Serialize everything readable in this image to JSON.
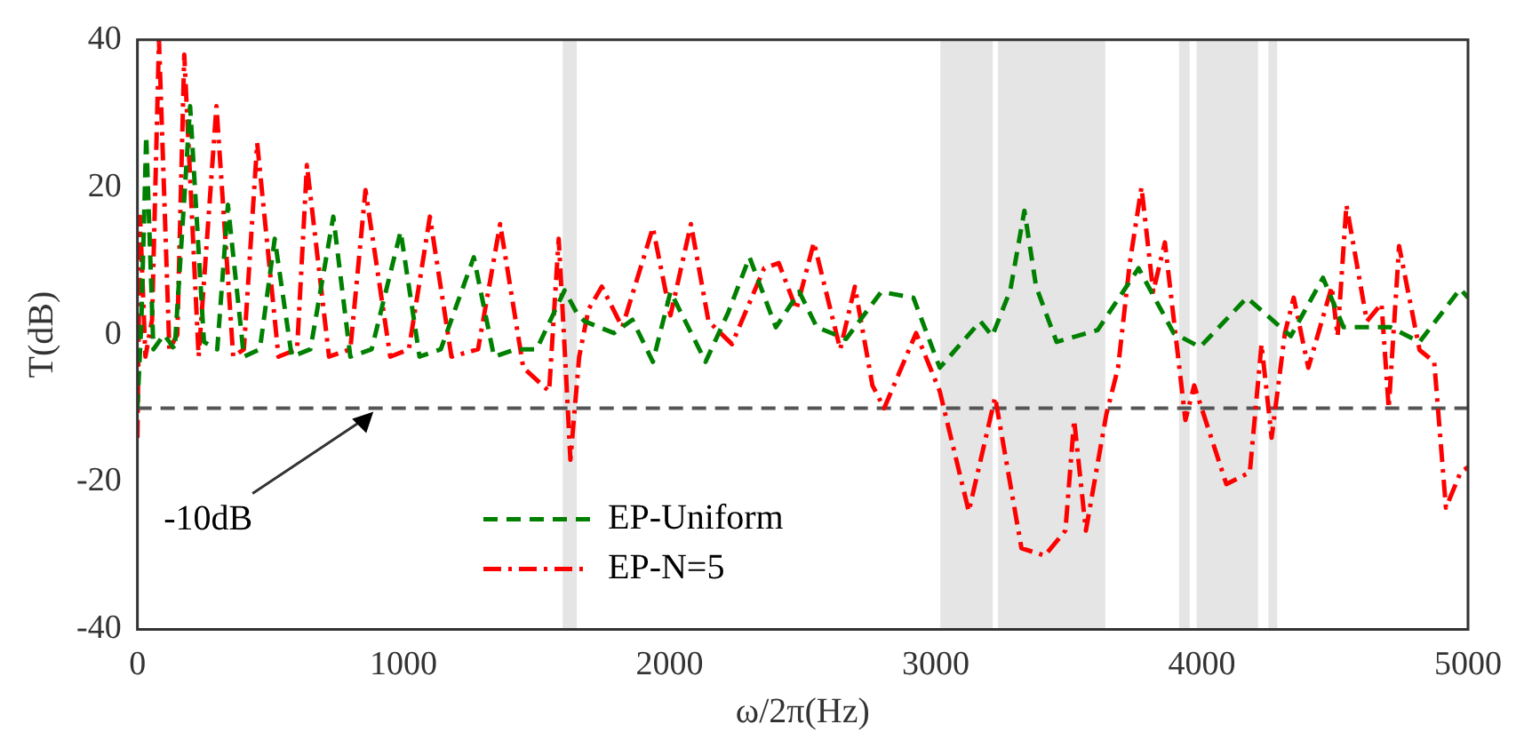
{
  "chart_data": {
    "type": "line",
    "xlabel": "ω/2π(Hz)",
    "ylabel": "T(dB)",
    "xlim": [
      0,
      5000
    ],
    "xticks": [
      0,
      1000,
      2000,
      3000,
      4000,
      5000
    ],
    "ylim": [
      -40,
      40
    ],
    "yticks": [
      -40,
      -20,
      0,
      20,
      40
    ],
    "grid": false,
    "legend": "bottom",
    "marker": "none",
    "series": [
      {
        "name": "EP-Uniform",
        "color": "#008000",
        "line_style": "dashed",
        "x": [
          0,
          15,
          33,
          60,
          100,
          140,
          198,
          250,
          300,
          340,
          400,
          460,
          516,
          580,
          650,
          736,
          800,
          880,
          989,
          1060,
          1140,
          1264,
          1340,
          1420,
          1500,
          1605,
          1650,
          1680,
          1790,
          1860,
          1937,
          2003,
          2070,
          2135,
          2220,
          2300,
          2399,
          2487,
          2553,
          2663,
          2795,
          2916,
          3015,
          3168,
          3212,
          3280,
          3333,
          3377,
          3454,
          3608,
          3762,
          3894,
          3993,
          4169,
          4334,
          4455,
          4532,
          4708,
          4818,
          4971,
          5000
        ],
        "values": [
          -10,
          2,
          27,
          -2,
          0,
          -2,
          31,
          -1,
          -2,
          17.6,
          -3,
          -2,
          13,
          -3,
          -2,
          16,
          -3,
          -2,
          14,
          -3,
          -2,
          10.5,
          -3,
          -2,
          -2,
          6,
          3,
          1.8,
          0.2,
          2,
          -3.7,
          5.8,
          1,
          -3.7,
          3,
          10.5,
          1,
          5.8,
          1,
          -0.6,
          5.8,
          5,
          -4.5,
          1.8,
          -0.2,
          6,
          16.8,
          6.5,
          -1,
          0.6,
          9,
          0.2,
          -1.7,
          5,
          -0.2,
          7.7,
          1,
          1,
          -1,
          6.2,
          5
        ]
      },
      {
        "name": "EP-N=5",
        "color": "#ff0000",
        "line_style": "dashdot",
        "x": [
          0,
          10,
          30,
          55,
          81,
          120,
          150,
          176,
          230,
          297,
          360,
          400,
          450,
          530,
          600,
          637,
          720,
          800,
          857,
          950,
          1020,
          1099,
          1180,
          1280,
          1363,
          1450,
          1547,
          1583,
          1610,
          1627,
          1660,
          1695,
          1745,
          1822,
          1937,
          2003,
          2080,
          2146,
          2234,
          2355,
          2410,
          2476,
          2542,
          2641,
          2696,
          2762,
          2806,
          2926,
          3015,
          3124,
          3223,
          3322,
          3410,
          3487,
          3520,
          3564,
          3641,
          3685,
          3729,
          3773,
          3817,
          3861,
          3938,
          3971,
          4092,
          4180,
          4224,
          4262,
          4312,
          4345,
          4400,
          4488,
          4510,
          4543,
          4620,
          4675,
          4702,
          4741,
          4818,
          4873,
          4917,
          4972,
          5000
        ],
        "values": [
          -14,
          16,
          -3,
          2,
          40,
          -2,
          0,
          38,
          -3,
          31,
          -3,
          -2,
          26,
          -3,
          -2,
          23,
          -3,
          -2,
          19.6,
          -3,
          -2,
          16,
          -3,
          -2,
          15,
          -4.5,
          -7.7,
          13,
          -5,
          -17,
          -3,
          3.4,
          6.5,
          1,
          14.5,
          2.6,
          15,
          1.8,
          -1.3,
          9,
          9.7,
          3.4,
          12.5,
          -2,
          6.5,
          -6.9,
          -10,
          0.2,
          -7.7,
          -24,
          -8.5,
          -29,
          -30,
          -26.6,
          -11.6,
          -26.6,
          -10.8,
          -4.5,
          9.7,
          20,
          5.8,
          12.5,
          -11.6,
          -6.9,
          -20.3,
          -18.7,
          -1.3,
          -14,
          0.2,
          5,
          -4.5,
          6.5,
          -0.2,
          17.6,
          1.8,
          4.2,
          -10,
          12,
          -2.1,
          -3.7,
          -23.5,
          -18.7,
          -18
        ]
      }
    ],
    "ref_lines": [
      {
        "axis": "y",
        "value": -10,
        "color": "#555555",
        "line_style": "dashed"
      }
    ],
    "bands": [
      {
        "axis": "x",
        "from": 1598,
        "to": 1651,
        "color": "#e5e5e5"
      },
      {
        "axis": "x",
        "from": 3017,
        "to": 3214,
        "color": "#e5e5e5"
      },
      {
        "axis": "x",
        "from": 3234,
        "to": 3637,
        "color": "#e5e5e5"
      },
      {
        "axis": "x",
        "from": 3914,
        "to": 3954,
        "color": "#e5e5e5"
      },
      {
        "axis": "x",
        "from": 3980,
        "to": 4211,
        "color": "#e5e5e5"
      },
      {
        "axis": "x",
        "from": 4250,
        "to": 4283,
        "color": "#e5e5e5"
      }
    ],
    "annotations": [
      {
        "text": "-10dB",
        "x": 900,
        "y": -10
      }
    ]
  }
}
